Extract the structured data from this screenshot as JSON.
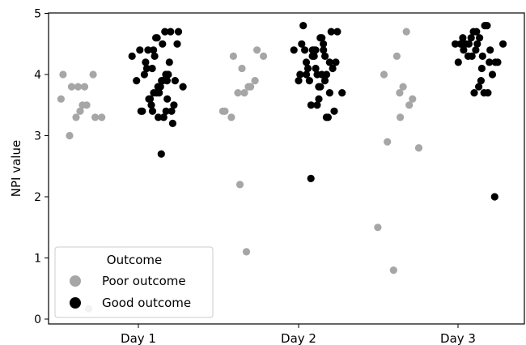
{
  "chart_data": {
    "type": "scatter",
    "title": "",
    "xlabel": "",
    "ylabel": "NPI value",
    "categories": [
      "Day 1",
      "Day 2",
      "Day 3"
    ],
    "ylim": [
      0,
      5
    ],
    "yticks": [
      0,
      1,
      2,
      3,
      4,
      5
    ],
    "grid": false,
    "legend": {
      "title": "Outcome",
      "placement": "lower-left",
      "entries": [
        "Poor outcome",
        "Good outcome"
      ]
    },
    "series": [
      {
        "name": "Poor outcome",
        "color": "#a6a6a6",
        "points": {
          "Day 1": [
            3.6,
            3.5,
            3.3,
            3.0,
            4.0,
            3.8,
            3.8,
            3.8,
            4.0,
            3.5,
            3.4,
            3.3,
            3.3,
            0.17
          ],
          "Day 2": [
            3.4,
            3.7,
            3.7,
            3.3,
            3.4,
            1.1,
            2.2,
            4.3,
            3.9,
            3.8,
            4.1,
            4.3,
            4.4,
            3.8
          ],
          "Day 3": [
            4.0,
            1.5,
            3.7,
            0.8,
            2.9,
            3.5,
            3.8,
            4.3,
            2.8,
            3.6,
            4.7,
            3.3
          ]
        }
      },
      {
        "name": "Good outcome",
        "color": "#000000",
        "points": {
          "Day 1": [
            4.4,
            4.3,
            4.1,
            4.0,
            3.9,
            3.7,
            3.6,
            3.4,
            2.7,
            4.4,
            4.2,
            4.0,
            3.8,
            3.6,
            3.4,
            4.5,
            4.3,
            4.1,
            3.9,
            3.7,
            3.5,
            3.4,
            3.3,
            4.6,
            4.4,
            4.0,
            3.8,
            3.4,
            3.2,
            4.7,
            4.6,
            4.5,
            4.2,
            3.9,
            3.7,
            3.5,
            3.4,
            3.3,
            4.7,
            4.7,
            3.9,
            3.8,
            3.9,
            3.6
          ],
          "Day 2": [
            4.5,
            4.4,
            4.3,
            4.0,
            3.9,
            3.6,
            3.5,
            4.8,
            4.4,
            4.1,
            4.1,
            4.0,
            3.8,
            4.4,
            4.4,
            4.3,
            4.0,
            3.9,
            3.7,
            4.6,
            4.4,
            4.2,
            4.0,
            3.8,
            2.3,
            4.7,
            4.5,
            4.4,
            4.2,
            3.3,
            4.6,
            4.3,
            4.1,
            3.9,
            3.5,
            4.7,
            4.2,
            4.0,
            3.7,
            3.4,
            3.3
          ],
          "Day 3": [
            4.6,
            4.5,
            4.4,
            4.3,
            4.5,
            3.9,
            4.7,
            4.5,
            4.2,
            3.8,
            4.6,
            4.4,
            3.7,
            4.7,
            4.5,
            4.2,
            4.1,
            3.7,
            2.0,
            4.8,
            4.6,
            4.3,
            4.0,
            4.8,
            4.5,
            4.2,
            4.4,
            4.3,
            4.5,
            4.2,
            3.7
          ]
        }
      }
    ]
  }
}
